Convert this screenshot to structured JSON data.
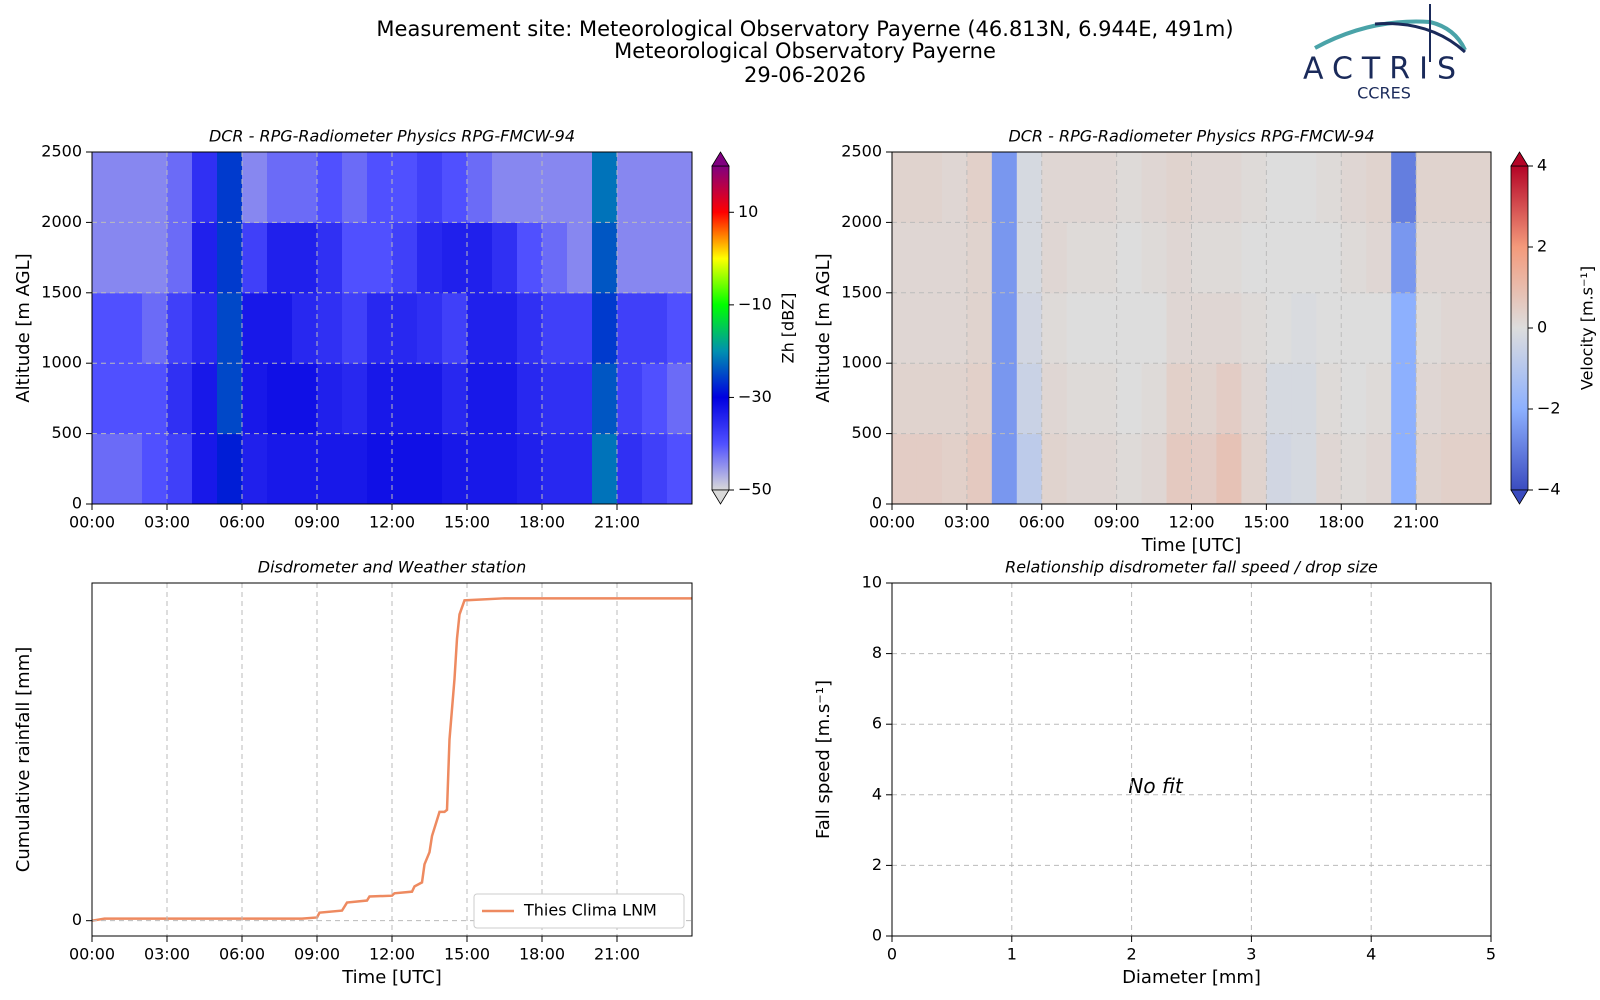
{
  "header": {
    "lines": [
      "Measurement site: Meteorological Observatory Payerne (46.813N, 6.944E, 491m)",
      "Meteorological Observatory Payerne",
      "29-06-2026"
    ],
    "logo_text": "ACTRIS",
    "logo_subtext": "CCRES"
  },
  "chart_data": [
    {
      "type": "heatmap",
      "title": "DCR - RPG-Radiometer Physics RPG-FMCW-94",
      "ylabel": "Altitude [m AGL]",
      "grid": true,
      "x_bins": [
        0,
        1,
        2,
        3,
        4,
        5,
        6,
        7,
        8,
        9,
        10,
        11,
        12,
        13,
        14,
        15,
        16,
        17,
        18,
        19,
        20,
        21,
        22,
        23,
        24
      ],
      "y_bins": [
        0,
        500,
        1000,
        1500,
        2000,
        2500
      ],
      "z": [
        [
          -42,
          -42,
          -40,
          -38,
          -33,
          -28,
          -34,
          -33,
          -33,
          -33,
          -33,
          -32,
          -32,
          -32,
          -33,
          -33,
          -33,
          -34,
          -35,
          -35,
          -22,
          -36,
          -38,
          -40
        ],
        [
          -40,
          -40,
          -40,
          -36,
          -33,
          -25,
          -33,
          -32,
          -32,
          -34,
          -35,
          -33,
          -33,
          -33,
          -35,
          -33,
          -33,
          -35,
          -36,
          -36,
          -24,
          -38,
          -40,
          -42
        ],
        [
          -40,
          -40,
          -42,
          -38,
          -35,
          -25,
          -33,
          -33,
          -35,
          -36,
          -38,
          -35,
          -35,
          -36,
          -38,
          -34,
          -34,
          -36,
          -38,
          -38,
          -26,
          -38,
          -38,
          -40
        ],
        [
          -44,
          -44,
          -44,
          -42,
          -34,
          -26,
          -38,
          -34,
          -34,
          -36,
          -40,
          -40,
          -38,
          -35,
          -34,
          -34,
          -36,
          -40,
          -42,
          -44,
          -24,
          -44,
          -44,
          -44
        ],
        [
          -44,
          -44,
          -44,
          -42,
          -36,
          -26,
          -44,
          -42,
          -42,
          -40,
          -42,
          -40,
          -40,
          -38,
          -40,
          -42,
          -44,
          -44,
          -44,
          -44,
          -22,
          -44,
          -44,
          -44
        ]
      ],
      "xlim": [
        0,
        24
      ],
      "xticks": [
        {
          "value": 0,
          "label": "00:00"
        },
        {
          "value": 3,
          "label": "03:00"
        },
        {
          "value": 6,
          "label": "06:00"
        },
        {
          "value": 9,
          "label": "09:00"
        },
        {
          "value": 12,
          "label": "12:00"
        },
        {
          "value": 15,
          "label": "15:00"
        },
        {
          "value": 18,
          "label": "18:00"
        },
        {
          "value": 21,
          "label": "21:00"
        }
      ],
      "ylim": [
        0,
        2500
      ],
      "yticks": [
        0,
        500,
        1000,
        1500,
        2000,
        2500
      ],
      "colorbar_label": "Zh [dBZ]",
      "zlim": [
        -50,
        20
      ],
      "zticks": [
        {
          "value": -50,
          "label": "−50"
        },
        {
          "value": -30,
          "label": "−30"
        },
        {
          "value": -10,
          "label": "−10"
        },
        10
      ],
      "colorscale": [
        "#d9d9d9",
        "#5050ff",
        "#0000e0",
        "#0090b0",
        "#00ff00",
        "#ffff00",
        "#ff0000",
        "#800080"
      ]
    },
    {
      "type": "heatmap",
      "title": "DCR - RPG-Radiometer Physics RPG-FMCW-94",
      "ylabel": "Altitude [m AGL]",
      "xlabel": "Time [UTC]",
      "grid": true,
      "x_bins": [
        0,
        1,
        2,
        3,
        4,
        5,
        6,
        7,
        8,
        9,
        10,
        11,
        12,
        13,
        14,
        15,
        16,
        17,
        18,
        19,
        20,
        21,
        22,
        23,
        24
      ],
      "y_bins": [
        0,
        500,
        1000,
        1500,
        2000,
        2500
      ],
      "z": [
        [
          0.5,
          0.5,
          0.4,
          0.6,
          -2.5,
          -0.8,
          0.3,
          0.2,
          0.2,
          0.1,
          0.2,
          0.6,
          0.5,
          0.8,
          0.3,
          -0.3,
          -0.2,
          0.2,
          0.1,
          0.2,
          -2.0,
          0.3,
          0.4,
          0.4
        ],
        [
          0.3,
          0.3,
          0.3,
          0.4,
          -2.5,
          -0.5,
          0.2,
          0.1,
          0.1,
          0,
          0.1,
          0.4,
          0.3,
          0.5,
          0.2,
          -0.2,
          -0.2,
          0.1,
          0,
          0.1,
          -2.0,
          0.2,
          0.3,
          0.3
        ],
        [
          0.2,
          0.2,
          0.2,
          0.3,
          -2.5,
          -0.3,
          0.1,
          0,
          0,
          0,
          0,
          0.2,
          0.2,
          0.2,
          0.1,
          0,
          -0.1,
          0,
          0,
          0,
          -2.0,
          0.1,
          0.2,
          0.2
        ],
        [
          0.2,
          0.2,
          0.2,
          0.3,
          -2.5,
          -0.2,
          0.2,
          0.1,
          0.1,
          0,
          0.1,
          0.2,
          0.1,
          0.1,
          0,
          0,
          0,
          0,
          0.1,
          0.2,
          -2.5,
          0.2,
          0.2,
          0.2
        ],
        [
          0.3,
          0.3,
          0.2,
          0.4,
          -2.5,
          -0.2,
          0.2,
          0.2,
          0.2,
          0.1,
          0.2,
          0.3,
          0.2,
          0.2,
          0.1,
          0,
          0,
          0.1,
          0.2,
          0.3,
          -3,
          0.3,
          0.3,
          0.3
        ]
      ],
      "xlim": [
        0,
        24
      ],
      "xticks": [
        {
          "value": 0,
          "label": "00:00"
        },
        {
          "value": 3,
          "label": "03:00"
        },
        {
          "value": 6,
          "label": "06:00"
        },
        {
          "value": 9,
          "label": "09:00"
        },
        {
          "value": 12,
          "label": "12:00"
        },
        {
          "value": 15,
          "label": "15:00"
        },
        {
          "value": 18,
          "label": "18:00"
        },
        {
          "value": 21,
          "label": "21:00"
        }
      ],
      "ylim": [
        0,
        2500
      ],
      "yticks": [
        0,
        500,
        1000,
        1500,
        2000,
        2500
      ],
      "colorbar_label": "Velocity [m.s⁻¹]",
      "zlim": [
        -4,
        4
      ],
      "zticks": [
        {
          "value": -4,
          "label": "−4"
        },
        {
          "value": -2,
          "label": "−2"
        },
        0,
        2,
        4
      ],
      "colorscale": [
        "#3b4cc0",
        "#8db0fe",
        "#dddddd",
        "#f49a7b",
        "#b40426"
      ]
    },
    {
      "type": "line",
      "title": "Disdrometer and Weather station",
      "ylabel": "Cumulative rainfall [mm]",
      "xlabel": "Time [UTC]",
      "grid": true,
      "legend": "lower right",
      "series": [
        {
          "name": "Thies Clima LNM",
          "color": "#ee8a60",
          "x": [
            0,
            0.5,
            8.4,
            9.0,
            9.1,
            10.0,
            10.2,
            11.0,
            11.1,
            12.0,
            12.1,
            12.8,
            12.9,
            13.2,
            13.3,
            13.5,
            13.6,
            13.8,
            13.9,
            14.1,
            14.2,
            14.3,
            14.5,
            14.6,
            14.7,
            14.9,
            16.5,
            24
          ],
          "values": [
            0,
            0.05,
            0.05,
            0.08,
            0.2,
            0.25,
            0.45,
            0.5,
            0.6,
            0.62,
            0.68,
            0.72,
            0.85,
            0.95,
            1.4,
            1.7,
            2.1,
            2.5,
            2.7,
            2.7,
            2.75,
            4.5,
            6.0,
            7.0,
            7.6,
            7.95,
            8.0,
            8.0
          ]
        }
      ],
      "xlim": [
        0,
        24
      ],
      "xticks": [
        {
          "value": 0,
          "label": "00:00"
        },
        {
          "value": 3,
          "label": "03:00"
        },
        {
          "value": 6,
          "label": "06:00"
        },
        {
          "value": 9,
          "label": "09:00"
        },
        {
          "value": 12,
          "label": "12:00"
        },
        {
          "value": 15,
          "label": "15:00"
        },
        {
          "value": 18,
          "label": "18:00"
        },
        {
          "value": 21,
          "label": "21:00"
        }
      ],
      "ylim": [
        -0.38,
        8.38
      ],
      "yticks": [
        0
      ]
    },
    {
      "type": "scatter",
      "title": "Relationship disdrometer fall speed / drop size",
      "ylabel": "Fall speed [m.s⁻¹]",
      "xlabel": "Diameter [mm]",
      "grid": true,
      "x": [],
      "values": [],
      "annotation": "No fit",
      "xlim": [
        0,
        5
      ],
      "xticks": [
        0,
        1,
        2,
        3,
        4,
        5
      ],
      "ylim": [
        0,
        10
      ],
      "yticks": [
        0,
        2,
        4,
        6,
        8,
        10
      ]
    }
  ]
}
